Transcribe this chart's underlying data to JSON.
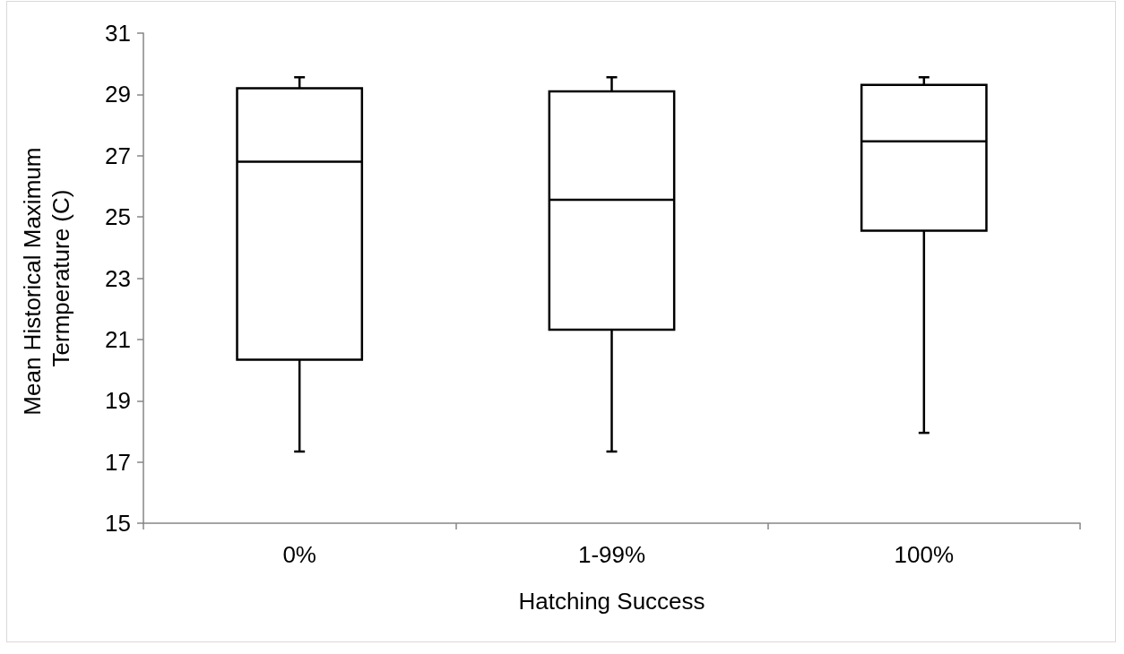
{
  "chart_data": {
    "type": "box",
    "categories": [
      "0%",
      "1-99%",
      "100%"
    ],
    "boxes": [
      {
        "low": 17.34,
        "q1": 20.34,
        "median": 26.8,
        "q3": 29.2,
        "high": 29.56
      },
      {
        "low": 17.34,
        "q1": 21.32,
        "median": 25.56,
        "q3": 29.1,
        "high": 29.56
      },
      {
        "low": 17.95,
        "q1": 24.55,
        "median": 27.47,
        "q3": 29.31,
        "high": 29.56
      }
    ],
    "color": "#000000",
    "xlabel": "Hatching Success",
    "ylabel": "Mean Historical Maximum Termperature (C)",
    "ylim": [
      15,
      31
    ],
    "yticks": [
      15,
      17,
      19,
      21,
      23,
      25,
      27,
      29,
      31
    ]
  }
}
